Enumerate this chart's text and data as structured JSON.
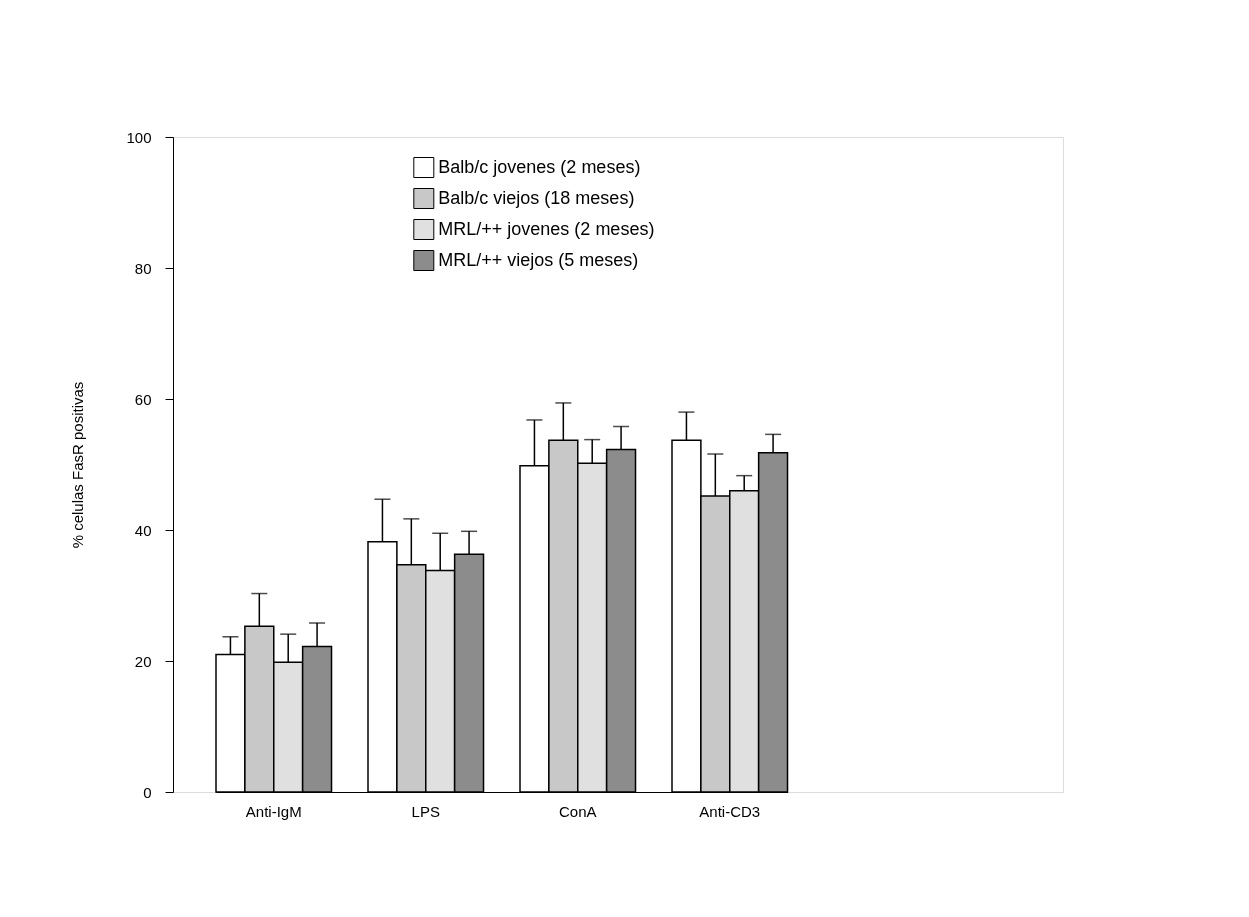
{
  "chart_data": {
    "type": "bar",
    "ylabel": "% celulas FasR positivas",
    "categories": [
      "Anti-IgM",
      "LPS",
      "ConA",
      "Anti-CD3"
    ],
    "series": [
      {
        "name": "Balb/c jovenes (2 meses)",
        "color": "#ffffff",
        "values": [
          21,
          38.2,
          49.8,
          53.7
        ],
        "errors": [
          [
            21,
            23.7
          ],
          [
            38.2,
            44.7
          ],
          [
            49.8,
            56.8
          ],
          [
            53.7,
            58
          ]
        ]
      },
      {
        "name": "Balb/c viejos (18 meses)",
        "color": "#c8c8c8",
        "values": [
          25.3,
          34.7,
          53.7,
          45.2
        ],
        "errors": [
          [
            25.3,
            30.3
          ],
          [
            34.7,
            41.7
          ],
          [
            53.7,
            59.4
          ],
          [
            45.2,
            51.6
          ]
        ]
      },
      {
        "name": "MRL/++ jovenes (2 meses)",
        "color": "#e0e0e0",
        "values": [
          19.8,
          33.8,
          50.2,
          46
        ],
        "errors": [
          [
            19.8,
            24.1
          ],
          [
            33.8,
            39.5
          ],
          [
            50.2,
            53.8
          ],
          [
            46,
            48.3
          ]
        ]
      },
      {
        "name": "MRL/++ viejos (5 meses)",
        "color": "#8c8c8c",
        "values": [
          22.2,
          36.3,
          52.3,
          51.8
        ],
        "errors": [
          [
            22.2,
            25.8
          ],
          [
            36.3,
            39.8
          ],
          [
            52.3,
            55.8
          ],
          [
            51.8,
            54.6
          ]
        ]
      }
    ],
    "ylim": [
      0,
      100
    ],
    "yticks": [
      0,
      20,
      40,
      60,
      80,
      100
    ],
    "grid": false,
    "legend": "top"
  }
}
